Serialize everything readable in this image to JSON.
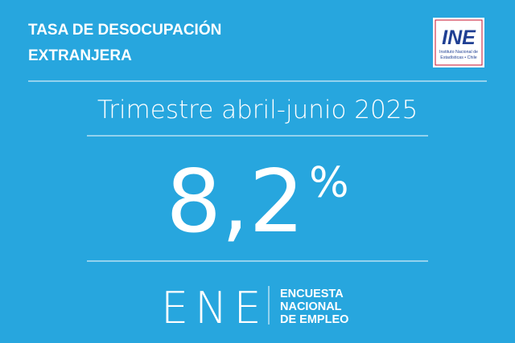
{
  "header": {
    "title_lines": [
      "TASA DE DESOCUPACIÓN",
      "EXTRANJERA"
    ],
    "logo": {
      "mark": "INE",
      "caption_lines": [
        "Instituto Nacional de",
        "Estadísticas • Chile"
      ]
    }
  },
  "period": "Trimestre abril-junio 2025",
  "rate": {
    "value": "8,2",
    "unit": "%"
  },
  "footer": {
    "acronym": "ENE",
    "name_lines": [
      "ENCUESTA",
      "NACIONAL",
      "DE EMPLEO"
    ]
  }
}
